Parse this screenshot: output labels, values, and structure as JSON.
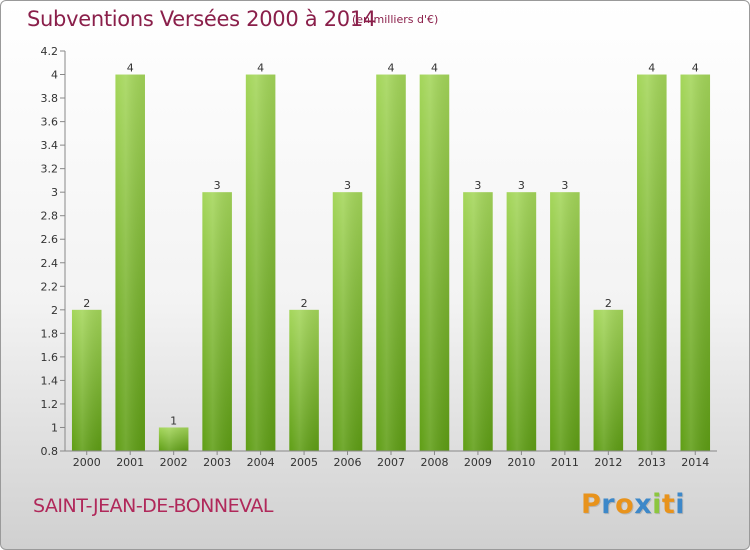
{
  "chart_data": {
    "type": "bar",
    "title": "Subventions Versées 2000 à 2014",
    "subtitle": "(en milliers d'€)",
    "categories": [
      "2000",
      "2001",
      "2002",
      "2003",
      "2004",
      "2005",
      "2006",
      "2007",
      "2008",
      "2009",
      "2010",
      "2011",
      "2012",
      "2013",
      "2014"
    ],
    "values": [
      2,
      4,
      1,
      3,
      4,
      2,
      3,
      4,
      4,
      3,
      3,
      3,
      2,
      4,
      4
    ],
    "data_labels": [
      "2",
      "4",
      "1",
      "3",
      "4",
      "2",
      "3",
      "4",
      "4",
      "3",
      "3",
      "3",
      "2",
      "4",
      "4"
    ],
    "ylim": [
      0.8,
      4.2
    ],
    "yticks": [
      0.8,
      1,
      1.2,
      1.4,
      1.6,
      1.8,
      2,
      2.2,
      2.4,
      2.6,
      2.8,
      3,
      3.2,
      3.4,
      3.6,
      3.8,
      4,
      4.2
    ],
    "ytick_labels": [
      "0.8",
      "1",
      "1.2",
      "1.4",
      "1.6",
      "1.8",
      "2",
      "2.2",
      "2.4",
      "2.6",
      "2.8",
      "3",
      "3.2",
      "3.4",
      "3.6",
      "3.8",
      "4",
      "4.2"
    ],
    "grid": false,
    "bar_color": "#8cc63f"
  },
  "footer": {
    "town": "SAINT-JEAN-DE-BONNEVAL",
    "logo_letters": [
      "P",
      "r",
      "o",
      "x",
      "i",
      "t",
      "i"
    ],
    "logo_colors": [
      "#e8931c",
      "#3d88c9",
      "#e8931c",
      "#3d88c9",
      "#8cc63f",
      "#e8931c",
      "#3d88c9"
    ]
  }
}
